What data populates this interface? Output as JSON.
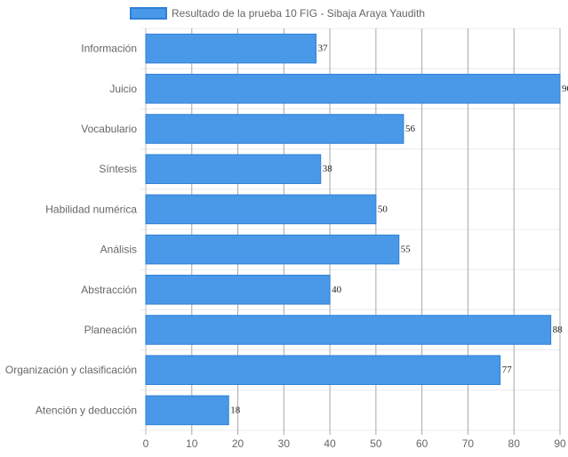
{
  "chart_data": {
    "type": "bar",
    "orientation": "horizontal",
    "categories": [
      "Información",
      "Juicio",
      "Vocabulario",
      "Síntesis",
      "Habilidad numérica",
      "Análisis",
      "Abstracción",
      "Planeación",
      "Organización y clasificación",
      "Atención y deducción"
    ],
    "series": [
      {
        "name": "Resultado de la prueba 10 FIG - Sibaja Araya Yaudith",
        "values": [
          37,
          90,
          56,
          38,
          50,
          55,
          40,
          88,
          77,
          18
        ],
        "color": "#4a99e9",
        "border_color": "#2e7fd6"
      }
    ],
    "xlim": [
      0,
      90
    ],
    "x_ticks": [
      "0",
      "10",
      "20",
      "30",
      "40",
      "50",
      "60",
      "70",
      "80",
      "90"
    ],
    "grid": true,
    "legend": "top",
    "data_labels": true
  }
}
